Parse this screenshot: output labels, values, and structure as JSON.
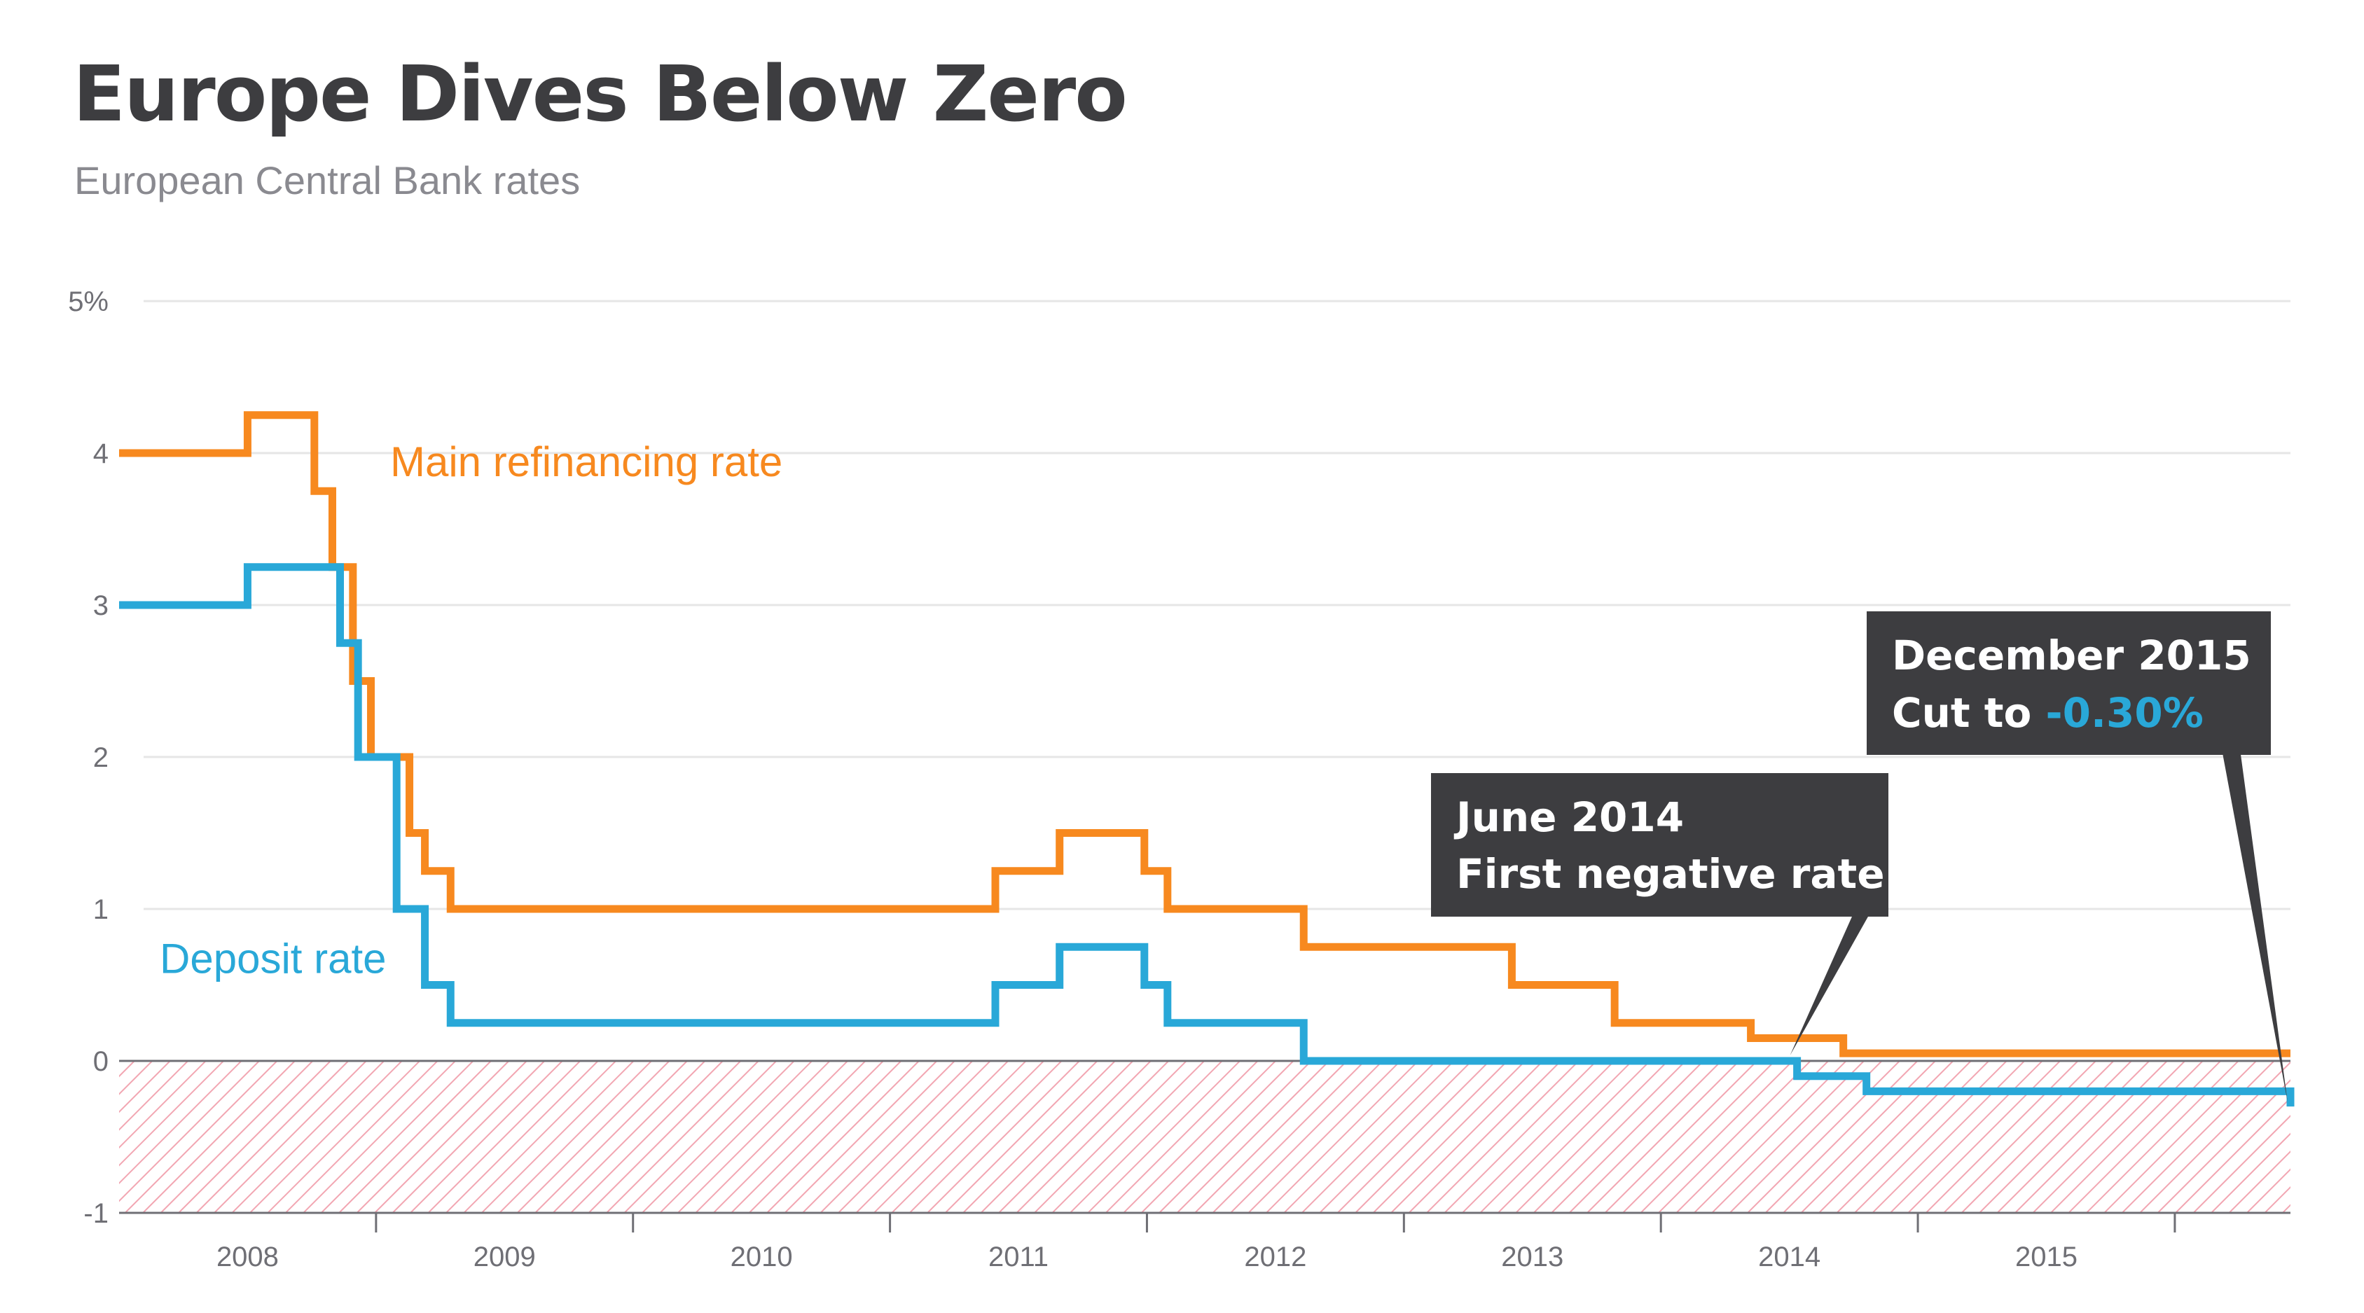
{
  "title": "Europe Dives Below Zero",
  "subtitle": "European Central Bank rates",
  "colors": {
    "refi": "#f7891f",
    "deposit": "#29a8d8",
    "callout_bg": "#3d3d40",
    "negative_hatch": "#f2a6b2",
    "grid": "#e6e6e6",
    "axis": "#6f6f75"
  },
  "chart_data": {
    "type": "line",
    "xlim": [
      2007.5,
      2015.95
    ],
    "ylim": [
      -1,
      5
    ],
    "y_ticks": [
      {
        "value": 5,
        "label": "5%"
      },
      {
        "value": 4,
        "label": "4"
      },
      {
        "value": 3,
        "label": "3"
      },
      {
        "value": 2,
        "label": "2"
      },
      {
        "value": 1,
        "label": "1"
      },
      {
        "value": 0,
        "label": "0"
      },
      {
        "value": -1,
        "label": "-1"
      }
    ],
    "year_boundaries": [
      2008.5,
      2009.5,
      2010.5,
      2011.5,
      2012.5,
      2013.5,
      2014.5,
      2015.5
    ],
    "x_labels": [
      {
        "value": 2008,
        "label": "2008"
      },
      {
        "value": 2009,
        "label": "2009"
      },
      {
        "value": 2010,
        "label": "2010"
      },
      {
        "value": 2011,
        "label": "2011"
      },
      {
        "value": 2012,
        "label": "2012"
      },
      {
        "value": 2013,
        "label": "2013"
      },
      {
        "value": 2014,
        "label": "2014"
      },
      {
        "value": 2015,
        "label": "2015"
      }
    ],
    "grid": true,
    "negative_region_hatched": true,
    "series": [
      {
        "name": "Main refinancing rate",
        "key": "refi",
        "x": [
          2007.5,
          2008.0,
          2008.26,
          2008.33,
          2008.41,
          2008.48,
          2008.63,
          2008.69,
          2008.79,
          2010.91,
          2011.16,
          2011.49,
          2011.58,
          2012.11,
          2012.92,
          2013.32,
          2013.85,
          2014.21,
          2015.95
        ],
        "values": [
          4.0,
          4.25,
          3.75,
          3.25,
          2.5,
          2.0,
          1.5,
          1.25,
          1.0,
          1.25,
          1.5,
          1.25,
          1.0,
          0.75,
          0.5,
          0.25,
          0.15,
          0.05,
          0.05
        ]
      },
      {
        "name": "Deposit rate",
        "key": "deposit",
        "x": [
          2007.5,
          2008.0,
          2008.36,
          2008.43,
          2008.58,
          2008.69,
          2008.79,
          2010.91,
          2011.16,
          2011.49,
          2011.58,
          2012.11,
          2014.03,
          2014.3,
          2015.95,
          2015.95
        ],
        "values": [
          3.0,
          3.25,
          2.75,
          2.0,
          1.0,
          0.5,
          0.25,
          0.5,
          0.75,
          0.5,
          0.25,
          0.0,
          -0.1,
          -0.2,
          -0.2,
          -0.3
        ]
      }
    ],
    "annotations": [
      {
        "key": "june2014",
        "line1": "June 2014",
        "line2": "First negative rate"
      },
      {
        "key": "dec2015",
        "line1": "December 2015",
        "line2_prefix": "Cut to ",
        "line2_highlight": "-0.30%"
      }
    ]
  }
}
